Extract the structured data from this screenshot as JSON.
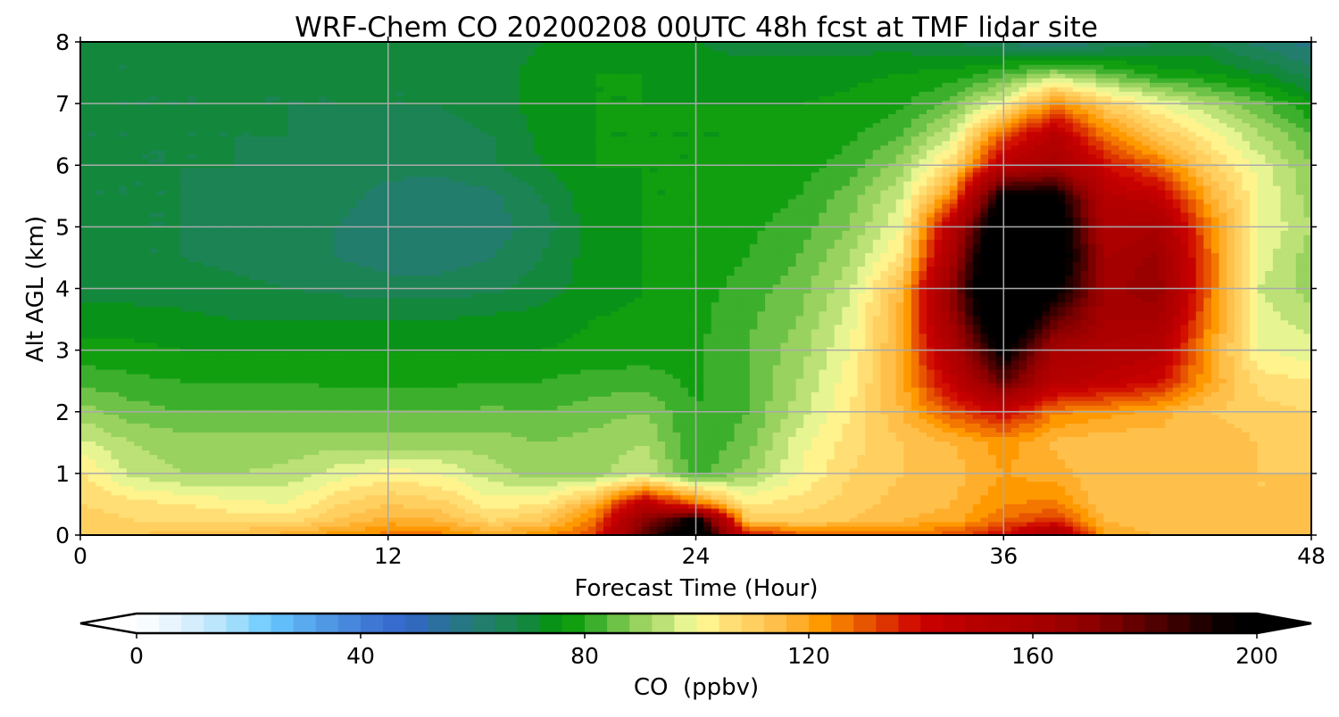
{
  "chart_data": {
    "type": "heatmap",
    "title": "WRF-Chem CO 20200208 00UTC 48h fcst at TMF lidar site",
    "xlabel": "Forecast Time (Hour)",
    "ylabel": "Alt AGL (km)",
    "xlim": [
      0,
      48
    ],
    "ylim": [
      0,
      8
    ],
    "xticks": [
      "0",
      "12",
      "24",
      "36",
      "48"
    ],
    "yticks": [
      "0",
      "1",
      "2",
      "3",
      "4",
      "5",
      "6",
      "7",
      "8"
    ],
    "grid": true,
    "x": [
      0,
      2,
      4,
      6,
      8,
      10,
      12,
      14,
      16,
      18,
      20,
      22,
      24,
      26,
      28,
      30,
      32,
      34,
      36,
      38,
      40,
      42,
      44,
      46,
      48
    ],
    "y": [
      0,
      0.25,
      0.5,
      1,
      1.5,
      2,
      2.5,
      3,
      3.5,
      4,
      4.5,
      5,
      5.5,
      6,
      6.5,
      7,
      7.5,
      8
    ],
    "values": [
      [
        112,
        112,
        114,
        116,
        118,
        122,
        126,
        126,
        120,
        122,
        132,
        180,
        210,
        140,
        130,
        128,
        128,
        130,
        140,
        160,
        118,
        116,
        116,
        116,
        116
      ],
      [
        110,
        108,
        108,
        106,
        106,
        112,
        118,
        116,
        108,
        112,
        125,
        170,
        200,
        112,
        110,
        112,
        116,
        118,
        128,
        135,
        116,
        114,
        114,
        114,
        114
      ],
      [
        108,
        106,
        104,
        102,
        100,
        108,
        112,
        110,
        102,
        104,
        118,
        150,
        130,
        104,
        106,
        110,
        114,
        116,
        124,
        125,
        112,
        112,
        112,
        112,
        112
      ],
      [
        105,
        95,
        92,
        92,
        93,
        98,
        102,
        100,
        94,
        90,
        90,
        96,
        82,
        90,
        100,
        108,
        112,
        114,
        120,
        118,
        112,
        114,
        114,
        112,
        112
      ],
      [
        97,
        92,
        90,
        90,
        90,
        90,
        90,
        90,
        90,
        88,
        90,
        92,
        80,
        86,
        98,
        106,
        112,
        116,
        122,
        115,
        112,
        114,
        114,
        112,
        110
      ],
      [
        90,
        86,
        84,
        84,
        84,
        84,
        84,
        84,
        85,
        84,
        86,
        88,
        80,
        84,
        94,
        104,
        116,
        130,
        140,
        125,
        122,
        118,
        112,
        110,
        108
      ],
      [
        83,
        81,
        80,
        80,
        80,
        79,
        79,
        79,
        80,
        80,
        82,
        82,
        79,
        84,
        92,
        102,
        118,
        145,
        180,
        150,
        145,
        140,
        120,
        106,
        104
      ],
      [
        77,
        77,
        76,
        76,
        76,
        76,
        76,
        76,
        76,
        76,
        77,
        78,
        79,
        84,
        90,
        100,
        118,
        155,
        200,
        160,
        155,
        150,
        120,
        100,
        98
      ],
      [
        74,
        74,
        73,
        72,
        72,
        72,
        72,
        72,
        73,
        74,
        76,
        77,
        79,
        83,
        88,
        98,
        118,
        165,
        220,
        180,
        160,
        160,
        125,
        98,
        94
      ],
      [
        70,
        70,
        70,
        69,
        68,
        67,
        66,
        66,
        67,
        70,
        74,
        76,
        78,
        82,
        86,
        95,
        115,
        170,
        230,
        200,
        162,
        168,
        128,
        96,
        90
      ],
      [
        68,
        68,
        68,
        67,
        66,
        64,
        62,
        62,
        64,
        68,
        74,
        76,
        77,
        80,
        84,
        92,
        105,
        160,
        230,
        210,
        160,
        165,
        128,
        98,
        90
      ],
      [
        68,
        68,
        68,
        67,
        66,
        64,
        62,
        61,
        62,
        66,
        74,
        76,
        77,
        79,
        82,
        88,
        100,
        150,
        220,
        210,
        155,
        160,
        125,
        100,
        92
      ],
      [
        68,
        68,
        68,
        67,
        66,
        65,
        63,
        62,
        63,
        68,
        75,
        76,
        76,
        78,
        80,
        86,
        96,
        125,
        200,
        200,
        150,
        145,
        118,
        100,
        90
      ],
      [
        68,
        68,
        68,
        68,
        67,
        66,
        65,
        65,
        67,
        72,
        76,
        76,
        76,
        77,
        78,
        82,
        90,
        108,
        150,
        160,
        140,
        128,
        110,
        98,
        88
      ],
      [
        68,
        68,
        68,
        68,
        68,
        67,
        66,
        66,
        68,
        73,
        76,
        76,
        76,
        76,
        77,
        79,
        84,
        96,
        130,
        150,
        125,
        112,
        102,
        92,
        84
      ],
      [
        68,
        68,
        68,
        68,
        68,
        68,
        68,
        68,
        70,
        74,
        76,
        76,
        76,
        76,
        76,
        77,
        79,
        86,
        100,
        125,
        110,
        100,
        92,
        85,
        76
      ],
      [
        68,
        68,
        68,
        68,
        68,
        68,
        68,
        68,
        70,
        74,
        76,
        76,
        75,
        74,
        74,
        75,
        76,
        77,
        82,
        90,
        84,
        78,
        76,
        72,
        66
      ],
      [
        68,
        68,
        68,
        68,
        68,
        68,
        68,
        68,
        69,
        72,
        75,
        75,
        72,
        70,
        70,
        70,
        70,
        68,
        64,
        58,
        64,
        68,
        68,
        62,
        58
      ]
    ],
    "colorbar": {
      "label": "CO  (ppbv)",
      "range": [
        0,
        200
      ],
      "step": 4,
      "extend": "both",
      "ticks": [
        "0",
        "40",
        "80",
        "120",
        "160",
        "200"
      ],
      "stops": [
        [
          0,
          "#ffffff"
        ],
        [
          8,
          "#e0f2fd"
        ],
        [
          16,
          "#b0e2fb"
        ],
        [
          24,
          "#66c8ff"
        ],
        [
          32,
          "#55a0e8"
        ],
        [
          44,
          "#3a6fd0"
        ],
        [
          48,
          "#3366cc"
        ],
        [
          56,
          "#2a7390"
        ],
        [
          64,
          "#1f8060"
        ],
        [
          72,
          "#0f8a30"
        ],
        [
          76,
          "#009900"
        ],
        [
          80,
          "#22a520"
        ],
        [
          84,
          "#55b83a"
        ],
        [
          88,
          "#88cc55"
        ],
        [
          92,
          "#aad866"
        ],
        [
          96,
          "#ccea88"
        ],
        [
          100,
          "#ffff99"
        ],
        [
          104,
          "#ffe680"
        ],
        [
          110,
          "#ffd060"
        ],
        [
          116,
          "#ffb840"
        ],
        [
          122,
          "#ff9900"
        ],
        [
          128,
          "#ee6600"
        ],
        [
          134,
          "#dd3300"
        ],
        [
          140,
          "#cc0000"
        ],
        [
          150,
          "#b50000"
        ],
        [
          160,
          "#aa0000"
        ],
        [
          172,
          "#880000"
        ],
        [
          184,
          "#440000"
        ],
        [
          196,
          "#000000"
        ]
      ]
    }
  }
}
